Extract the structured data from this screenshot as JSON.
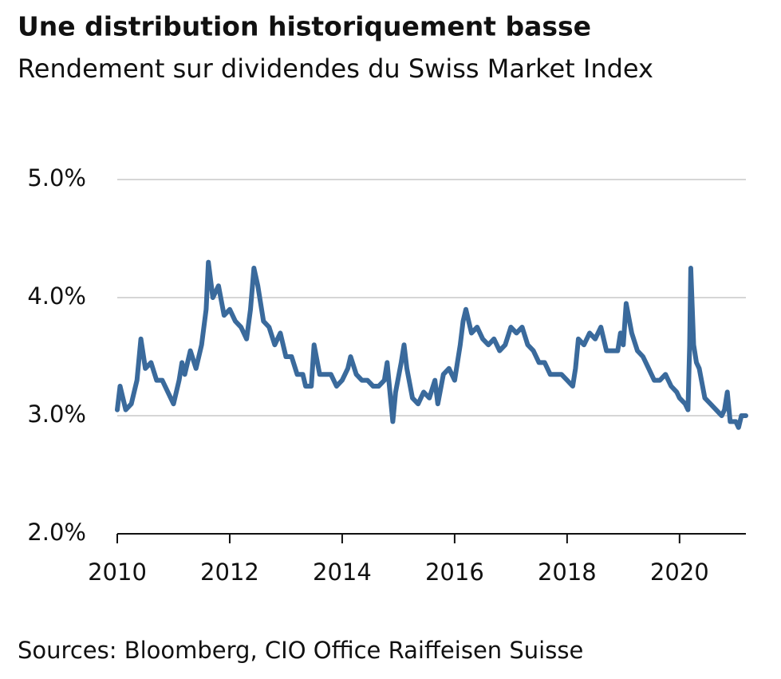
{
  "chart_data": {
    "type": "line",
    "title": "Une distribution historiquement basse",
    "subtitle": "Rendement sur dividendes du Swiss Market Index",
    "source": "Sources: Bloomberg, CIO Office Raiffeisen Suisse",
    "xlim": [
      2010,
      2021.18
    ],
    "xticks": [
      2010,
      2012,
      2014,
      2016,
      2018,
      2020
    ],
    "ylim": [
      2,
      5
    ],
    "yticks": [
      {
        "value": 2,
        "label": "2.0%"
      },
      {
        "value": 3,
        "label": "3.0%"
      },
      {
        "value": 4,
        "label": "4.0%"
      },
      {
        "value": 5,
        "label": "5.0%"
      }
    ],
    "grid": true,
    "series": [
      {
        "color": "#3a6a9c",
        "x": [
          2010.0,
          2010.05,
          2010.15,
          2010.25,
          2010.35,
          2010.42,
          2010.5,
          2010.6,
          2010.7,
          2010.8,
          2010.9,
          2011.0,
          2011.1,
          2011.15,
          2011.2,
          2011.3,
          2011.4,
          2011.5,
          2011.58,
          2011.62,
          2011.7,
          2011.8,
          2011.9,
          2012.0,
          2012.1,
          2012.2,
          2012.3,
          2012.37,
          2012.43,
          2012.5,
          2012.6,
          2012.7,
          2012.8,
          2012.9,
          2013.0,
          2013.1,
          2013.2,
          2013.3,
          2013.35,
          2013.45,
          2013.5,
          2013.6,
          2013.7,
          2013.8,
          2013.9,
          2014.0,
          2014.1,
          2014.15,
          2014.25,
          2014.35,
          2014.45,
          2014.55,
          2014.65,
          2014.75,
          2014.8,
          2014.85,
          2014.9,
          2014.95,
          2015.05,
          2015.1,
          2015.15,
          2015.25,
          2015.35,
          2015.45,
          2015.55,
          2015.65,
          2015.7,
          2015.8,
          2015.9,
          2016.0,
          2016.05,
          2016.1,
          2016.15,
          2016.2,
          2016.3,
          2016.4,
          2016.5,
          2016.6,
          2016.7,
          2016.8,
          2016.9,
          2017.0,
          2017.1,
          2017.2,
          2017.3,
          2017.4,
          2017.5,
          2017.6,
          2017.7,
          2017.8,
          2017.9,
          2018.0,
          2018.1,
          2018.15,
          2018.2,
          2018.3,
          2018.4,
          2018.5,
          2018.6,
          2018.7,
          2018.8,
          2018.9,
          2018.95,
          2019.0,
          2019.05,
          2019.15,
          2019.25,
          2019.35,
          2019.45,
          2019.55,
          2019.65,
          2019.75,
          2019.85,
          2019.95,
          2020.0,
          2020.1,
          2020.15,
          2020.18,
          2020.2,
          2020.25,
          2020.3,
          2020.35,
          2020.45,
          2020.55,
          2020.65,
          2020.75,
          2020.8,
          2020.85,
          2020.9,
          2021.0,
          2021.05,
          2021.1,
          2021.18
        ],
        "values": [
          3.05,
          3.25,
          3.05,
          3.1,
          3.3,
          3.65,
          3.4,
          3.45,
          3.3,
          3.3,
          3.2,
          3.1,
          3.3,
          3.45,
          3.35,
          3.55,
          3.4,
          3.6,
          3.9,
          4.3,
          4.0,
          4.1,
          3.85,
          3.9,
          3.8,
          3.75,
          3.65,
          3.9,
          4.25,
          4.1,
          3.8,
          3.75,
          3.6,
          3.7,
          3.5,
          3.5,
          3.35,
          3.35,
          3.25,
          3.25,
          3.6,
          3.35,
          3.35,
          3.35,
          3.25,
          3.3,
          3.4,
          3.5,
          3.35,
          3.3,
          3.3,
          3.25,
          3.25,
          3.3,
          3.45,
          3.2,
          2.95,
          3.2,
          3.45,
          3.6,
          3.4,
          3.15,
          3.1,
          3.2,
          3.15,
          3.3,
          3.1,
          3.35,
          3.4,
          3.3,
          3.45,
          3.6,
          3.8,
          3.9,
          3.7,
          3.75,
          3.65,
          3.6,
          3.65,
          3.55,
          3.6,
          3.75,
          3.7,
          3.75,
          3.6,
          3.55,
          3.45,
          3.45,
          3.35,
          3.35,
          3.35,
          3.3,
          3.25,
          3.4,
          3.65,
          3.6,
          3.7,
          3.65,
          3.75,
          3.55,
          3.55,
          3.55,
          3.7,
          3.6,
          3.95,
          3.7,
          3.55,
          3.5,
          3.4,
          3.3,
          3.3,
          3.35,
          3.25,
          3.2,
          3.15,
          3.1,
          3.05,
          3.6,
          4.25,
          3.6,
          3.45,
          3.4,
          3.15,
          3.1,
          3.05,
          3.0,
          3.05,
          3.2,
          2.95,
          2.95,
          2.9,
          3.0,
          3.0
        ]
      }
    ]
  }
}
